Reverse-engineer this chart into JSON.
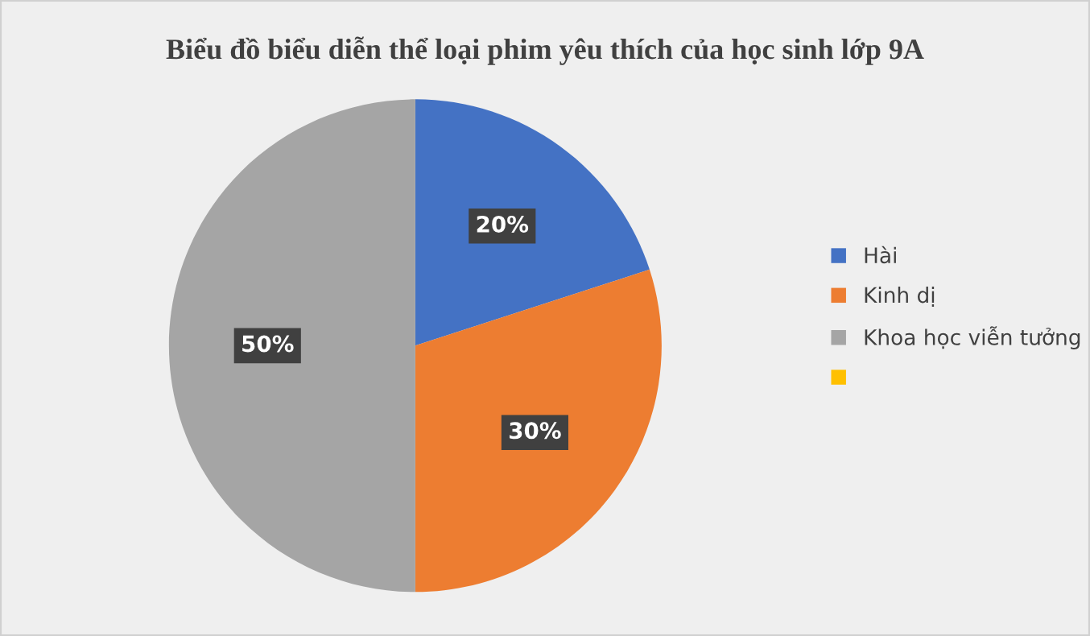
{
  "chart_data": {
    "type": "pie",
    "title": "Biểu đồ biểu diễn thể loại phim yêu thích của học sinh lớp 9A",
    "categories": [
      "Hài",
      "Kinh dị",
      "Khoa học viễn tưởng",
      null
    ],
    "values": [
      20,
      30,
      50,
      0
    ],
    "colors": [
      "#4472c4",
      "#ed7d31",
      "#a5a5a5",
      "#ffc000"
    ],
    "value_labels": [
      "20%",
      "30%",
      "50%",
      null
    ],
    "legend": "right"
  }
}
